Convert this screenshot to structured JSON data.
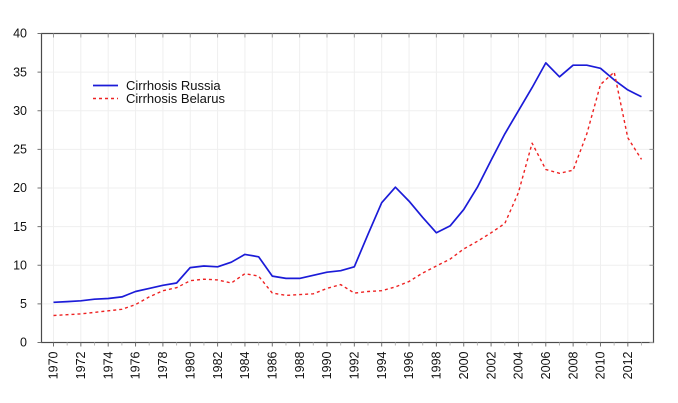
{
  "chart_data": {
    "type": "line",
    "title": "",
    "xlabel": "",
    "ylabel": "",
    "x": [
      1970,
      1971,
      1972,
      1973,
      1974,
      1975,
      1976,
      1977,
      1978,
      1979,
      1980,
      1981,
      1982,
      1983,
      1984,
      1985,
      1986,
      1987,
      1988,
      1989,
      1990,
      1991,
      1992,
      1993,
      1994,
      1995,
      1996,
      1997,
      1998,
      1999,
      2000,
      2001,
      2002,
      2003,
      2004,
      2005,
      2006,
      2007,
      2008,
      2009,
      2010,
      2011,
      2012,
      2013
    ],
    "series": [
      {
        "name": "Cirrhosis Russia",
        "color": "#1b1bd8",
        "style": "solid",
        "values": [
          5.2,
          5.3,
          5.4,
          5.6,
          5.7,
          5.9,
          6.6,
          7.0,
          7.4,
          7.7,
          9.7,
          9.9,
          9.8,
          10.4,
          11.4,
          11.1,
          8.6,
          8.3,
          8.3,
          8.7,
          9.1,
          9.3,
          9.8,
          14.0,
          18.1,
          20.1,
          18.3,
          16.2,
          14.2,
          15.1,
          17.2,
          20.1,
          23.6,
          27.0,
          30.0,
          33.0,
          36.2,
          34.4,
          35.9,
          35.9,
          35.5,
          34.0,
          32.7,
          31.8
        ]
      },
      {
        "name": "Cirrhosis Belarus",
        "color": "#ee2222",
        "style": "dashed",
        "values": [
          3.5,
          3.6,
          3.7,
          3.9,
          4.1,
          4.3,
          4.9,
          5.9,
          6.7,
          7.1,
          8.0,
          8.2,
          8.1,
          7.7,
          8.9,
          8.6,
          6.4,
          6.1,
          6.2,
          6.3,
          7.0,
          7.5,
          6.4,
          6.6,
          6.7,
          7.2,
          7.9,
          9.0,
          9.9,
          10.8,
          12.1,
          13.1,
          14.2,
          15.4,
          19.4,
          25.8,
          22.4,
          21.9,
          22.3,
          27.0,
          33.4,
          35.0,
          26.5,
          23.7
        ]
      }
    ],
    "ylim": [
      0,
      40
    ],
    "y_ticks": [
      0,
      5,
      10,
      15,
      20,
      25,
      30,
      35,
      40
    ],
    "x_tick_labels": [
      "1970",
      "1972",
      "1974",
      "1976",
      "1978",
      "1980",
      "1982",
      "1984",
      "1986",
      "1988",
      "1990",
      "1992",
      "1994",
      "1996",
      "1998",
      "2000",
      "2002",
      "2004",
      "2006",
      "2008",
      "2010",
      "2012"
    ],
    "grid": true,
    "legend_position": "upper-left-inside",
    "frame_color": "#4a4a4a",
    "grid_color": "#efefef",
    "tick_color": "#707070",
    "minor_tick_color": "#b8b8b8",
    "label_color": "#111111"
  }
}
